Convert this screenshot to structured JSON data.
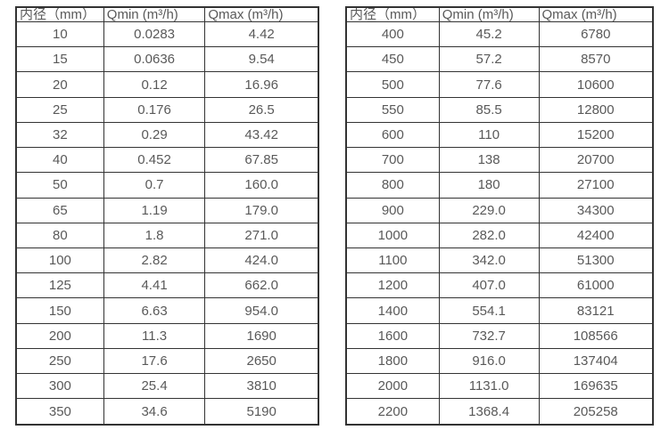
{
  "page": {
    "background_color": "#ffffff",
    "border_color": "#333333",
    "text_color": "#595959"
  },
  "tables": [
    {
      "name": "flow-rate-table-small-diameters",
      "headers": [
        "内径（mm）",
        "Qmin (m³/h)",
        "Qmax (m³/h)"
      ],
      "rows": [
        [
          "10",
          "0.0283",
          "4.42"
        ],
        [
          "15",
          "0.0636",
          "9.54"
        ],
        [
          "20",
          "0.12",
          "16.96"
        ],
        [
          "25",
          "0.176",
          "26.5"
        ],
        [
          "32",
          "0.29",
          "43.42"
        ],
        [
          "40",
          "0.452",
          "67.85"
        ],
        [
          "50",
          "0.7",
          "160.0"
        ],
        [
          "65",
          "1.19",
          "179.0"
        ],
        [
          "80",
          "1.8",
          "271.0"
        ],
        [
          "100",
          "2.82",
          "424.0"
        ],
        [
          "125",
          "4.41",
          "662.0"
        ],
        [
          "150",
          "6.63",
          "954.0"
        ],
        [
          "200",
          "11.3",
          "1690"
        ],
        [
          "250",
          "17.6",
          "2650"
        ],
        [
          "300",
          "25.4",
          "3810"
        ],
        [
          "350",
          "34.6",
          "5190"
        ]
      ]
    },
    {
      "name": "flow-rate-table-large-diameters",
      "headers": [
        "内径（mm）",
        "Qmin (m³/h)",
        "Qmax (m³/h)"
      ],
      "rows": [
        [
          "400",
          "45.2",
          "6780"
        ],
        [
          "450",
          "57.2",
          "8570"
        ],
        [
          "500",
          "77.6",
          "10600"
        ],
        [
          "550",
          "85.5",
          "12800"
        ],
        [
          "600",
          "110",
          "15200"
        ],
        [
          "700",
          "138",
          "20700"
        ],
        [
          "800",
          "180",
          "27100"
        ],
        [
          "900",
          "229.0",
          "34300"
        ],
        [
          "1000",
          "282.0",
          "42400"
        ],
        [
          "1100",
          "342.0",
          "51300"
        ],
        [
          "1200",
          "407.0",
          "61000"
        ],
        [
          "1400",
          "554.1",
          "83121"
        ],
        [
          "1600",
          "732.7",
          "108566"
        ],
        [
          "1800",
          "916.0",
          "137404"
        ],
        [
          "2000",
          "1131.0",
          "169635"
        ],
        [
          "2200",
          "1368.4",
          "205258"
        ]
      ]
    }
  ]
}
